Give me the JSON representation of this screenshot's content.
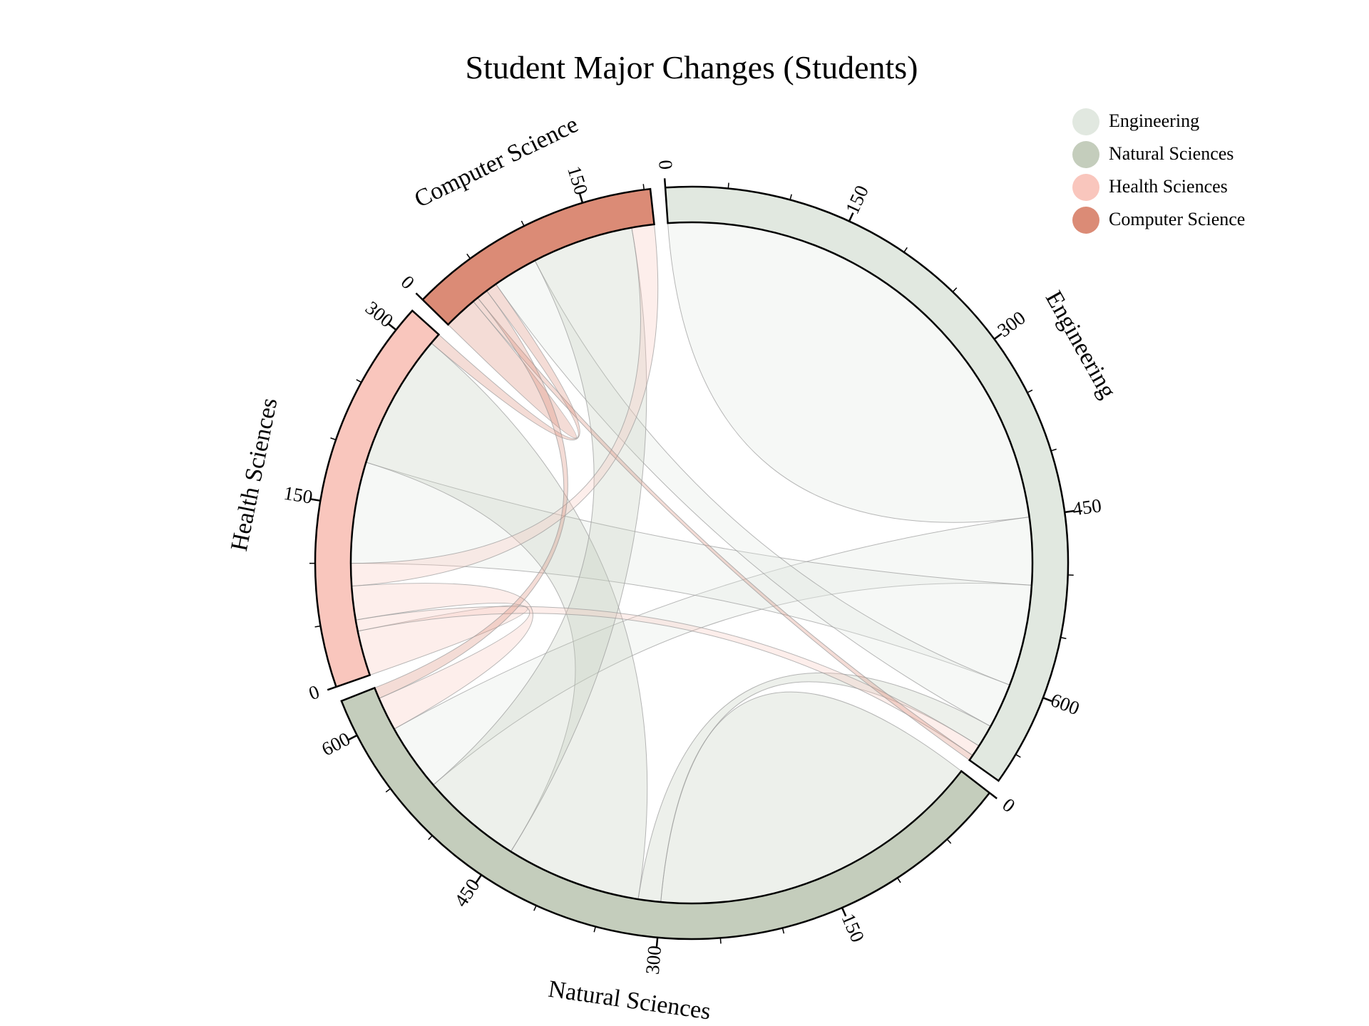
{
  "chart_data": {
    "type": "chord",
    "title": "Student Major Changes (Students)",
    "groups": [
      "Engineering",
      "Natural Sciences",
      "Health Sciences",
      "Computer Science"
    ],
    "colors": [
      "#e1e8e0",
      "#c4cdbc",
      "#f9c6bd",
      "#db8b76"
    ],
    "matrix": [
      [
        450,
        60,
        90,
        40
      ],
      [
        20,
        300,
        120,
        90
      ],
      [
        10,
        30,
        40,
        20
      ],
      [
        5,
        10,
        10,
        30
      ]
    ],
    "tick_step": 150,
    "legend": {
      "position": "top-right",
      "items": [
        "Engineering",
        "Natural Sciences",
        "Health Sciences",
        "Computer Science"
      ]
    }
  }
}
